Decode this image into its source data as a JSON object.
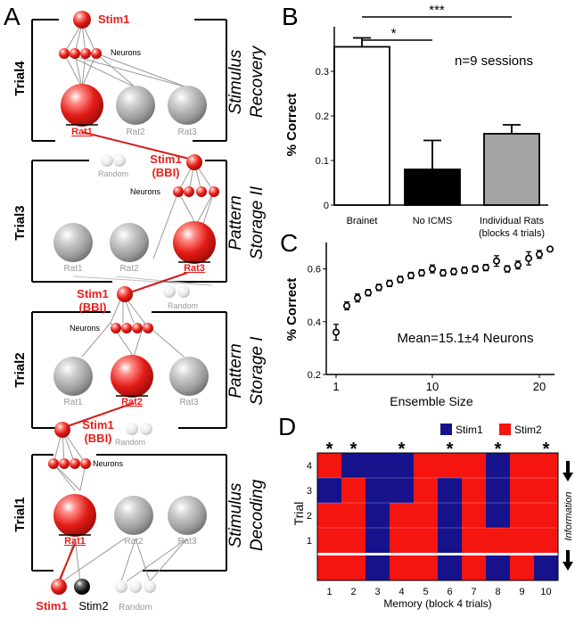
{
  "colors": {
    "red": "#e8201c",
    "blue": "#1a178f",
    "gray": "#a4a4a4",
    "black": "#000000",
    "line_red": "#d41b17",
    "heat_red": "#f41410",
    "heat_blue": "#16128c"
  },
  "panel_a": {
    "panel_label": "A",
    "trials": [
      {
        "trial_label": "Trial4",
        "title_line1": "Stimulus",
        "title_line2": "Recovery",
        "top_label": "Stim1",
        "neurons_label": "Neurons",
        "rat_labels": [
          "Rat1",
          "Rat2",
          "Rat3"
        ],
        "active_rat": 0
      },
      {
        "trial_label": "Trial3",
        "title_line1": "Pattern",
        "title_line2": "Storage II",
        "top_label_1": "Stim1",
        "top_label_2": "(BBI)",
        "neurons_label": "Neurons",
        "random_label": "Random",
        "rat_labels": [
          "Rat1",
          "Rat2",
          "Rat3"
        ],
        "active_rat": 2
      },
      {
        "trial_label": "Trial2",
        "title_line1": "Pattern",
        "title_line2": "Storage I",
        "top_label_1": "Stim1",
        "top_label_2": "(BBI)",
        "neurons_label": "Neurons",
        "random_label": "Random",
        "rat_labels": [
          "Rat1",
          "Rat2",
          "Rat3"
        ],
        "active_rat": 1
      },
      {
        "trial_label": "Trial1",
        "title_line1": "Stimulus",
        "title_line2": "Decoding",
        "top_label_1": "Stim1",
        "top_label_2": "(BBI)",
        "neurons_label": "Neurons",
        "rat_labels": [
          "Rat1",
          "Rat2",
          "Rat3"
        ],
        "active_rat": 0,
        "bottom_labels": [
          "Stim1",
          "Stim2",
          "Random"
        ]
      }
    ]
  },
  "chart_data": [
    {
      "id": "B",
      "panel_label": "B",
      "type": "bar",
      "ylabel": "% Correct",
      "ylim": [
        0,
        0.4
      ],
      "yticks": [
        0,
        0.1,
        0.2,
        0.3
      ],
      "ytick_labels": [
        "0",
        "0.1",
        "0.2",
        "0.3"
      ],
      "categories": [
        "Brainet",
        "No ICMS",
        "Individual Rats"
      ],
      "category_sublabels": [
        "",
        "",
        "(blocks 4 trials)"
      ],
      "values": [
        0.355,
        0.08,
        0.16
      ],
      "errors": [
        0.02,
        0.065,
        0.02
      ],
      "bar_colors": [
        "#ffffff",
        "#000000",
        "#a4a4a4"
      ],
      "annotation": "n=9 sessions",
      "significance": [
        {
          "from": 0,
          "to": 1,
          "label": "*"
        },
        {
          "from": 0,
          "to": 2,
          "label": "***"
        }
      ]
    },
    {
      "id": "C",
      "panel_label": "C",
      "type": "scatter",
      "xlabel": "Ensemble Size",
      "ylabel": "% Correct",
      "xlim": [
        1,
        22
      ],
      "ylim": [
        0.2,
        0.7
      ],
      "xticks": [
        1,
        10,
        20
      ],
      "yticks": [
        0.2,
        0.4,
        0.6
      ],
      "ytick_labels": [
        "0.2",
        "0.4",
        "0.6"
      ],
      "annotation": "Mean=15.1±4 Neurons",
      "x": [
        1,
        2,
        3,
        4,
        5,
        6,
        7,
        8,
        9,
        10,
        11,
        12,
        13,
        14,
        15,
        16,
        17,
        18,
        19,
        20,
        21
      ],
      "y": [
        0.36,
        0.46,
        0.49,
        0.51,
        0.53,
        0.545,
        0.56,
        0.575,
        0.585,
        0.6,
        0.585,
        0.59,
        0.595,
        0.6,
        0.605,
        0.63,
        0.6,
        0.615,
        0.64,
        0.655,
        0.675
      ],
      "err": [
        0.03,
        0.015,
        0.015,
        0.012,
        0.012,
        0.012,
        0.012,
        0.012,
        0.012,
        0.015,
        0.012,
        0.012,
        0.012,
        0.012,
        0.012,
        0.02,
        0.012,
        0.015,
        0.025,
        0.015,
        0.0
      ],
      "last_marker_empty": true
    },
    {
      "id": "D",
      "panel_label": "D",
      "type": "heatmap",
      "xlabel": "Memory (block 4 trials)",
      "ylabel": "Trial",
      "x_categories": [
        "1",
        "2",
        "3",
        "4",
        "5",
        "6",
        "7",
        "8",
        "9",
        "10"
      ],
      "y_categories": [
        "4",
        "3",
        "2",
        "1"
      ],
      "legend": [
        {
          "label": "Stim1",
          "color": "#16128c",
          "value": 1
        },
        {
          "label": "Stim2",
          "color": "#f41410",
          "value": 2
        }
      ],
      "side_label": "Information",
      "star_label": "*",
      "star_columns": [
        1,
        2,
        4,
        6,
        8,
        10
      ],
      "rows_note": "rows listed top to bottom: trial 4, 3, 2, 1, then the stimulus row",
      "grid": [
        [
          2,
          1,
          1,
          1,
          2,
          2,
          2,
          1,
          2,
          2
        ],
        [
          1,
          2,
          1,
          1,
          2,
          1,
          2,
          1,
          2,
          2
        ],
        [
          2,
          2,
          1,
          2,
          2,
          1,
          2,
          1,
          2,
          2
        ],
        [
          2,
          2,
          1,
          2,
          2,
          1,
          2,
          2,
          2,
          2
        ],
        [
          2,
          2,
          1,
          2,
          2,
          1,
          2,
          1,
          2,
          1
        ]
      ]
    }
  ]
}
